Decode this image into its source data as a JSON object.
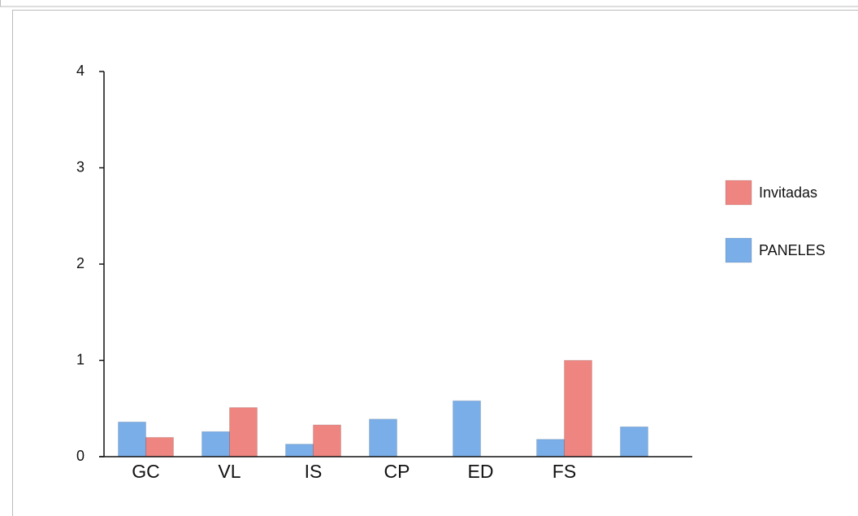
{
  "chart_data": {
    "type": "bar",
    "categories": [
      "GC",
      "VL",
      "IS",
      "CP",
      "ED",
      "FS",
      null
    ],
    "series": [
      {
        "name": "PANELES",
        "color": "#7aaee8",
        "values": [
          0.36,
          0.26,
          0.13,
          0.39,
          0.58,
          0.18,
          0.31
        ]
      },
      {
        "name": "Invitadas",
        "color": "#ee8580",
        "values": [
          0.2,
          0.51,
          0.33,
          null,
          null,
          1.0,
          null
        ]
      }
    ],
    "ylim": [
      0,
      4
    ],
    "yticks": [
      0,
      1,
      2,
      3,
      4
    ],
    "legend": "right"
  }
}
